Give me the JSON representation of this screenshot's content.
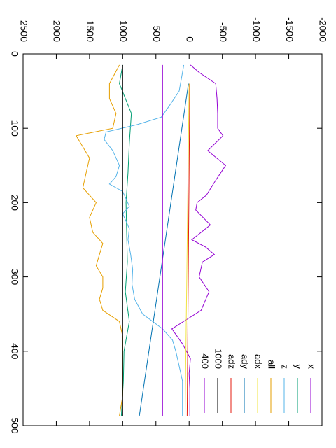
{
  "chart_data": {
    "type": "line",
    "orientation": "rotated-90-clockwise",
    "xlabel": "",
    "ylabel": "",
    "xlim": [
      0,
      500
    ],
    "ylim": [
      -2000,
      2500
    ],
    "x_ticks": [
      "0",
      "100",
      "200",
      "300",
      "400",
      "500"
    ],
    "y_ticks": [
      "-2000",
      "-1500",
      "-1000",
      "-500",
      "0",
      "500",
      "1000",
      "1500",
      "2000",
      "2500"
    ],
    "grid": false,
    "legend_position": "bottom-right",
    "series": [
      {
        "name": "x",
        "color": "#9400d3",
        "x": [
          15,
          25,
          40,
          60,
          80,
          100,
          110,
          130,
          150,
          170,
          190,
          200,
          210,
          230,
          250,
          260,
          270,
          280,
          300,
          320,
          345,
          370,
          390,
          410,
          430,
          450,
          470,
          487
        ],
        "y": [
          -20,
          -150,
          -400,
          -420,
          -430,
          -430,
          -510,
          -280,
          -550,
          -400,
          -260,
          -120,
          -100,
          -320,
          -40,
          -250,
          -380,
          -200,
          -150,
          -300,
          -180,
          260,
          100,
          -20,
          0,
          -10,
          -10,
          -10
        ]
      },
      {
        "name": "y",
        "color": "#009e73",
        "x": [
          15,
          40,
          80,
          120,
          160,
          200,
          240,
          280,
          320,
          360,
          400,
          440,
          487
        ],
        "y": [
          1000,
          1050,
          870,
          900,
          920,
          950,
          940,
          930,
          960,
          900,
          980,
          990,
          1020
        ]
      },
      {
        "name": "z",
        "color": "#56b4e9",
        "x": [
          15,
          30,
          50,
          70,
          85,
          95,
          105,
          115,
          130,
          150,
          165,
          175,
          185,
          195,
          205,
          215,
          225,
          235,
          250,
          270,
          290,
          310,
          330,
          350,
          370,
          385,
          400,
          420,
          440,
          460,
          487
        ],
        "y": [
          80,
          110,
          150,
          300,
          420,
          780,
          1250,
          1280,
          1150,
          1050,
          1100,
          1200,
          1000,
          950,
          900,
          1000,
          950,
          900,
          920,
          880,
          850,
          860,
          820,
          700,
          400,
          250,
          200,
          150,
          100,
          100,
          100
        ]
      },
      {
        "name": "all",
        "color": "#e69f00",
        "x": [
          15,
          40,
          60,
          80,
          100,
          110,
          125,
          140,
          160,
          180,
          200,
          220,
          240,
          255,
          270,
          285,
          300,
          315,
          330,
          345,
          360,
          380,
          400,
          420,
          440,
          460,
          487
        ],
        "y": [
          1050,
          1200,
          1200,
          1100,
          1150,
          1700,
          1600,
          1500,
          1550,
          1600,
          1400,
          1500,
          1450,
          1300,
          1350,
          1400,
          1300,
          1300,
          1350,
          1300,
          1050,
          1000,
          1000,
          1000,
          1000,
          1000,
          1050
        ]
      },
      {
        "name": "adx",
        "color": "#f0e442",
        "x": [
          40,
          487
        ],
        "y": [
          0,
          60
        ]
      },
      {
        "name": "ady",
        "color": "#0072b2",
        "x": [
          40,
          487
        ],
        "y": [
          10,
          750
        ]
      },
      {
        "name": "adz",
        "color": "#e51e10",
        "x": [
          40,
          487
        ],
        "y": [
          -10,
          30
        ]
      },
      {
        "name": "1000",
        "color": "#000000",
        "x": [
          15,
          487
        ],
        "y": [
          1000,
          1000
        ]
      },
      {
        "name": "400",
        "color": "#9400d3",
        "x": [
          15,
          487
        ],
        "y": [
          400,
          400
        ]
      }
    ]
  }
}
